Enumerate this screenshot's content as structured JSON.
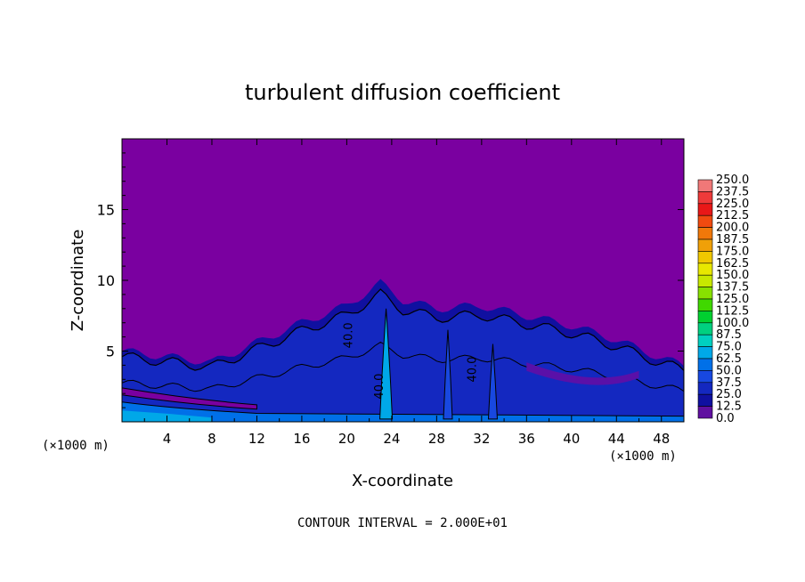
{
  "chart_data": {
    "type": "heatmap",
    "title": "turbulent diffusion coefficient",
    "xlabel": "X-coordinate",
    "ylabel": "Z-coordinate",
    "x_unit": "(×1000 m)",
    "z_unit": "(×1000 m)",
    "xlim": [
      0,
      50
    ],
    "ylim": [
      0,
      20
    ],
    "x_ticks": [
      4,
      8,
      12,
      16,
      20,
      24,
      28,
      32,
      36,
      40,
      44,
      48
    ],
    "y_ticks": [
      5,
      10,
      15
    ],
    "footer": "CONTOUR INTERVAL = 2.000E+01",
    "contour_labels": [
      "40.0",
      "40.0",
      "40.0"
    ],
    "colorbar": {
      "levels": [
        "250.0",
        "237.5",
        "225.0",
        "212.5",
        "200.0",
        "187.5",
        "175.0",
        "162.5",
        "150.0",
        "137.5",
        "125.0",
        "112.5",
        "100.0",
        "87.5",
        "75.0",
        "62.5",
        "50.0",
        "37.5",
        "25.0",
        "12.5",
        "0.0"
      ],
      "colors": [
        "#f07878",
        "#ee3a3a",
        "#e81818",
        "#f04a10",
        "#f0780a",
        "#f0a008",
        "#f0c800",
        "#e8e800",
        "#c8e800",
        "#88e000",
        "#40d800",
        "#00d030",
        "#00d080",
        "#00d0c0",
        "#00a8e8",
        "#0070e8",
        "#1848e0",
        "#1428c0",
        "#1010a0",
        "#6010a0",
        "#7a00a0"
      ]
    },
    "field": {
      "background_value": 0.0,
      "boundary_layer_top_profile": [
        [
          0,
          5.0
        ],
        [
          4,
          4.6
        ],
        [
          8,
          4.2
        ],
        [
          12,
          5.6
        ],
        [
          16,
          7.0
        ],
        [
          20,
          8.2
        ],
        [
          23,
          9.8
        ],
        [
          25,
          8.6
        ],
        [
          28,
          8.0
        ],
        [
          32,
          8.2
        ],
        [
          36,
          7.5
        ],
        [
          40,
          6.8
        ],
        [
          44,
          5.8
        ],
        [
          48,
          4.5
        ],
        [
          50,
          4.0
        ]
      ],
      "plumes": [
        {
          "x": 23.5,
          "top": 8.0,
          "value": 70.0
        },
        {
          "x": 29.0,
          "top": 6.5,
          "value": 55.0
        },
        {
          "x": 33.0,
          "top": 5.5,
          "value": 55.0
        }
      ]
    }
  }
}
